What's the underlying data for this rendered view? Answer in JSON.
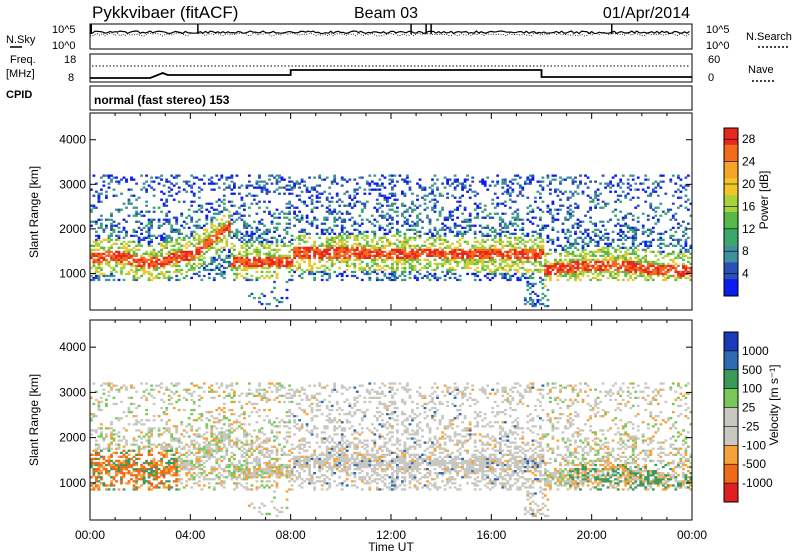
{
  "header": {
    "title": "Pykkvibaer (fitACF)",
    "beam": "Beam 03",
    "date": "01/Apr/2014"
  },
  "panels": {
    "nsky": {
      "label": "N.Sky",
      "left_ticks": [
        "10^5",
        "10^0"
      ],
      "right_ticks": [
        "10^5",
        "10^0"
      ],
      "right_label": "N.Search"
    },
    "freq": {
      "label_line1": "Freq.",
      "label_line2": "[MHz]",
      "left_ticks": [
        "18",
        "8"
      ],
      "right_ticks": [
        "60",
        "0"
      ],
      "right_label": "Nave"
    },
    "cpid": {
      "label": "CPID",
      "text": "normal (fast stereo) 153"
    }
  },
  "colors": {
    "power_scale": [
      "#0a1cf0",
      "#2a4fb6",
      "#3f8fa0",
      "#3aa86a",
      "#58b849",
      "#a7d23c",
      "#f2c62a",
      "#f5a428",
      "#f46a1e",
      "#e8281c"
    ],
    "velocity_scale": [
      "#e02020",
      "#f06a18",
      "#f5a23a",
      "#c8c8c0",
      "#c8c8c0",
      "#7bc85a",
      "#3a9a5a",
      "#2d6ab0",
      "#1a3ab8"
    ]
  },
  "chart_data": [
    {
      "type": "heatmap",
      "name_hint": "power",
      "ylabel": "Slant Range [km]",
      "xlabel": "Time UT",
      "x_ticks": [
        "00:00",
        "04:00",
        "08:00",
        "12:00",
        "16:00",
        "20:00",
        "00:00"
      ],
      "xlim_hours": [
        0,
        24
      ],
      "y_ticks": [
        1000,
        2000,
        3000,
        4000
      ],
      "ylim": [
        180,
        4600
      ],
      "colorbar_label": "Power [dB]",
      "colorbar_ticks": [
        4,
        8,
        12,
        16,
        20,
        24,
        28
      ],
      "colorbar_range": [
        0,
        30
      ]
    },
    {
      "type": "heatmap",
      "name_hint": "velocity",
      "ylabel": "Slant Range [km]",
      "xlabel": "Time UT",
      "x_ticks": [
        "00:00",
        "04:00",
        "08:00",
        "12:00",
        "16:00",
        "20:00",
        "00:00"
      ],
      "xlim_hours": [
        0,
        24
      ],
      "y_ticks": [
        1000,
        2000,
        3000,
        4000
      ],
      "ylim": [
        180,
        4600
      ],
      "colorbar_label": "Velocity [m s⁻¹]",
      "colorbar_ticks": [
        "-1000",
        "-500",
        "-100",
        "-25",
        "25",
        "100",
        "500",
        "1000"
      ]
    }
  ],
  "time_axis_label": "Time UT"
}
